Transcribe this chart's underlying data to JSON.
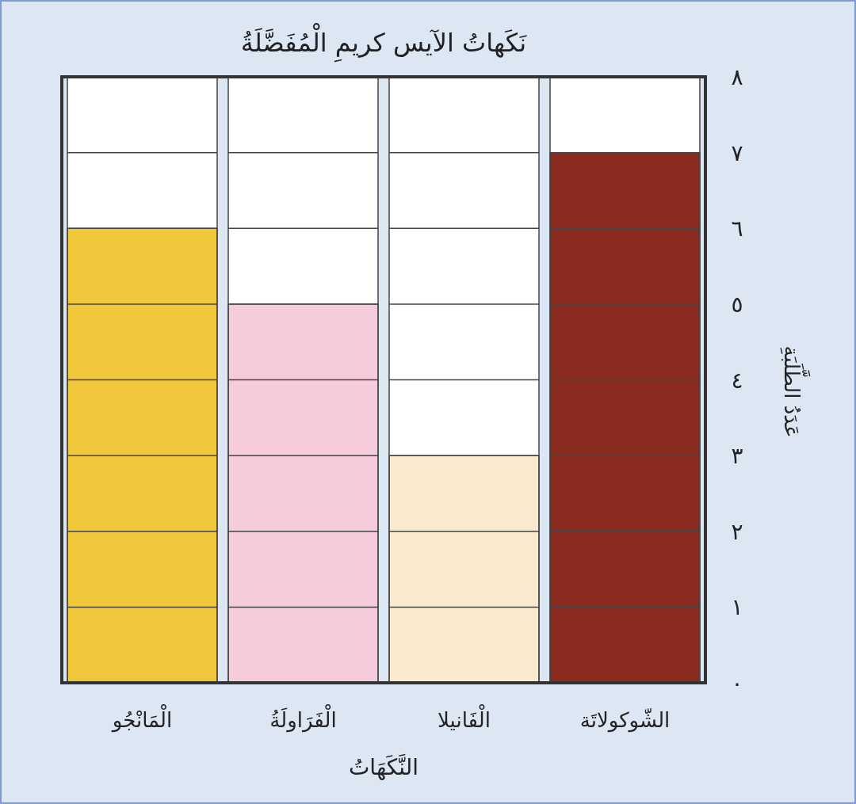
{
  "chart_data": {
    "type": "bar",
    "title": "نَكَهاتُ الآيس كريمِ الْمُفَضَّلَةُ",
    "xlabel": "النَّكَهَاتُ",
    "ylabel": "عَدَدُ الطَّلَبَةِ",
    "categories": [
      "الْمَانْجُو",
      "الْفَرَاولَةُ",
      "الْفَانيلا",
      "الشّوكولاتَة"
    ],
    "values": [
      6,
      5,
      3,
      7
    ],
    "colors": [
      "#f0c63a",
      "#f6cbdc",
      "#f8e9cf",
      "#8a2b1f"
    ],
    "ylim": [
      0,
      8
    ],
    "yticks": [
      {
        "value": 0,
        "label": "٠"
      },
      {
        "value": 1,
        "label": "١"
      },
      {
        "value": 2,
        "label": "٢"
      },
      {
        "value": 3,
        "label": "٣"
      },
      {
        "value": 4,
        "label": "٤"
      },
      {
        "value": 5,
        "label": "٥"
      },
      {
        "value": 6,
        "label": "٦"
      },
      {
        "value": 7,
        "label": "٧"
      },
      {
        "value": 8,
        "label": "٨"
      }
    ],
    "grid": "y"
  }
}
